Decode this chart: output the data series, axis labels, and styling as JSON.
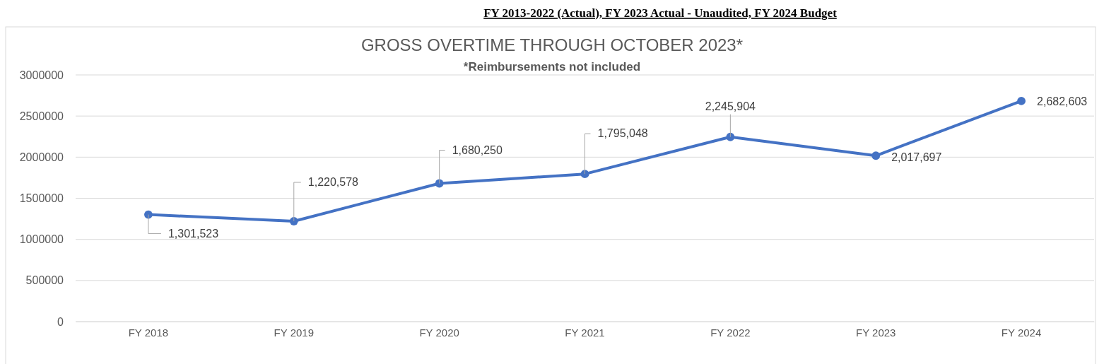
{
  "chart_data": {
    "type": "line",
    "title": "GROSS OVERTIME THROUGH OCTOBER 2023*",
    "subtitle": "*Reimbursements not included",
    "annotations": [
      "FY 2013-2022 (Actual), FY 2023 Actual - Unaudited, FY 2024 Budget"
    ],
    "categories": [
      "FY 2018",
      "FY 2019",
      "FY 2020",
      "FY 2021",
      "FY 2022",
      "FY 2023",
      "FY 2024"
    ],
    "series": [
      {
        "color": "#4472c4",
        "values": [
          1301523,
          1220578,
          1680250,
          1795048,
          2245904,
          2017697,
          2682603
        ],
        "value_labels": [
          "1,301,523",
          "1,220,578",
          "1,680,250",
          "1,795,048",
          "2,245,904",
          "2,017,697",
          "2,682,603"
        ]
      }
    ],
    "ylim": [
      0,
      3000000
    ],
    "yticks": [
      0,
      500000,
      1000000,
      1500000,
      2000000,
      2500000,
      3000000
    ],
    "grid": "y",
    "marker": "circle",
    "line_style": "solid"
  }
}
